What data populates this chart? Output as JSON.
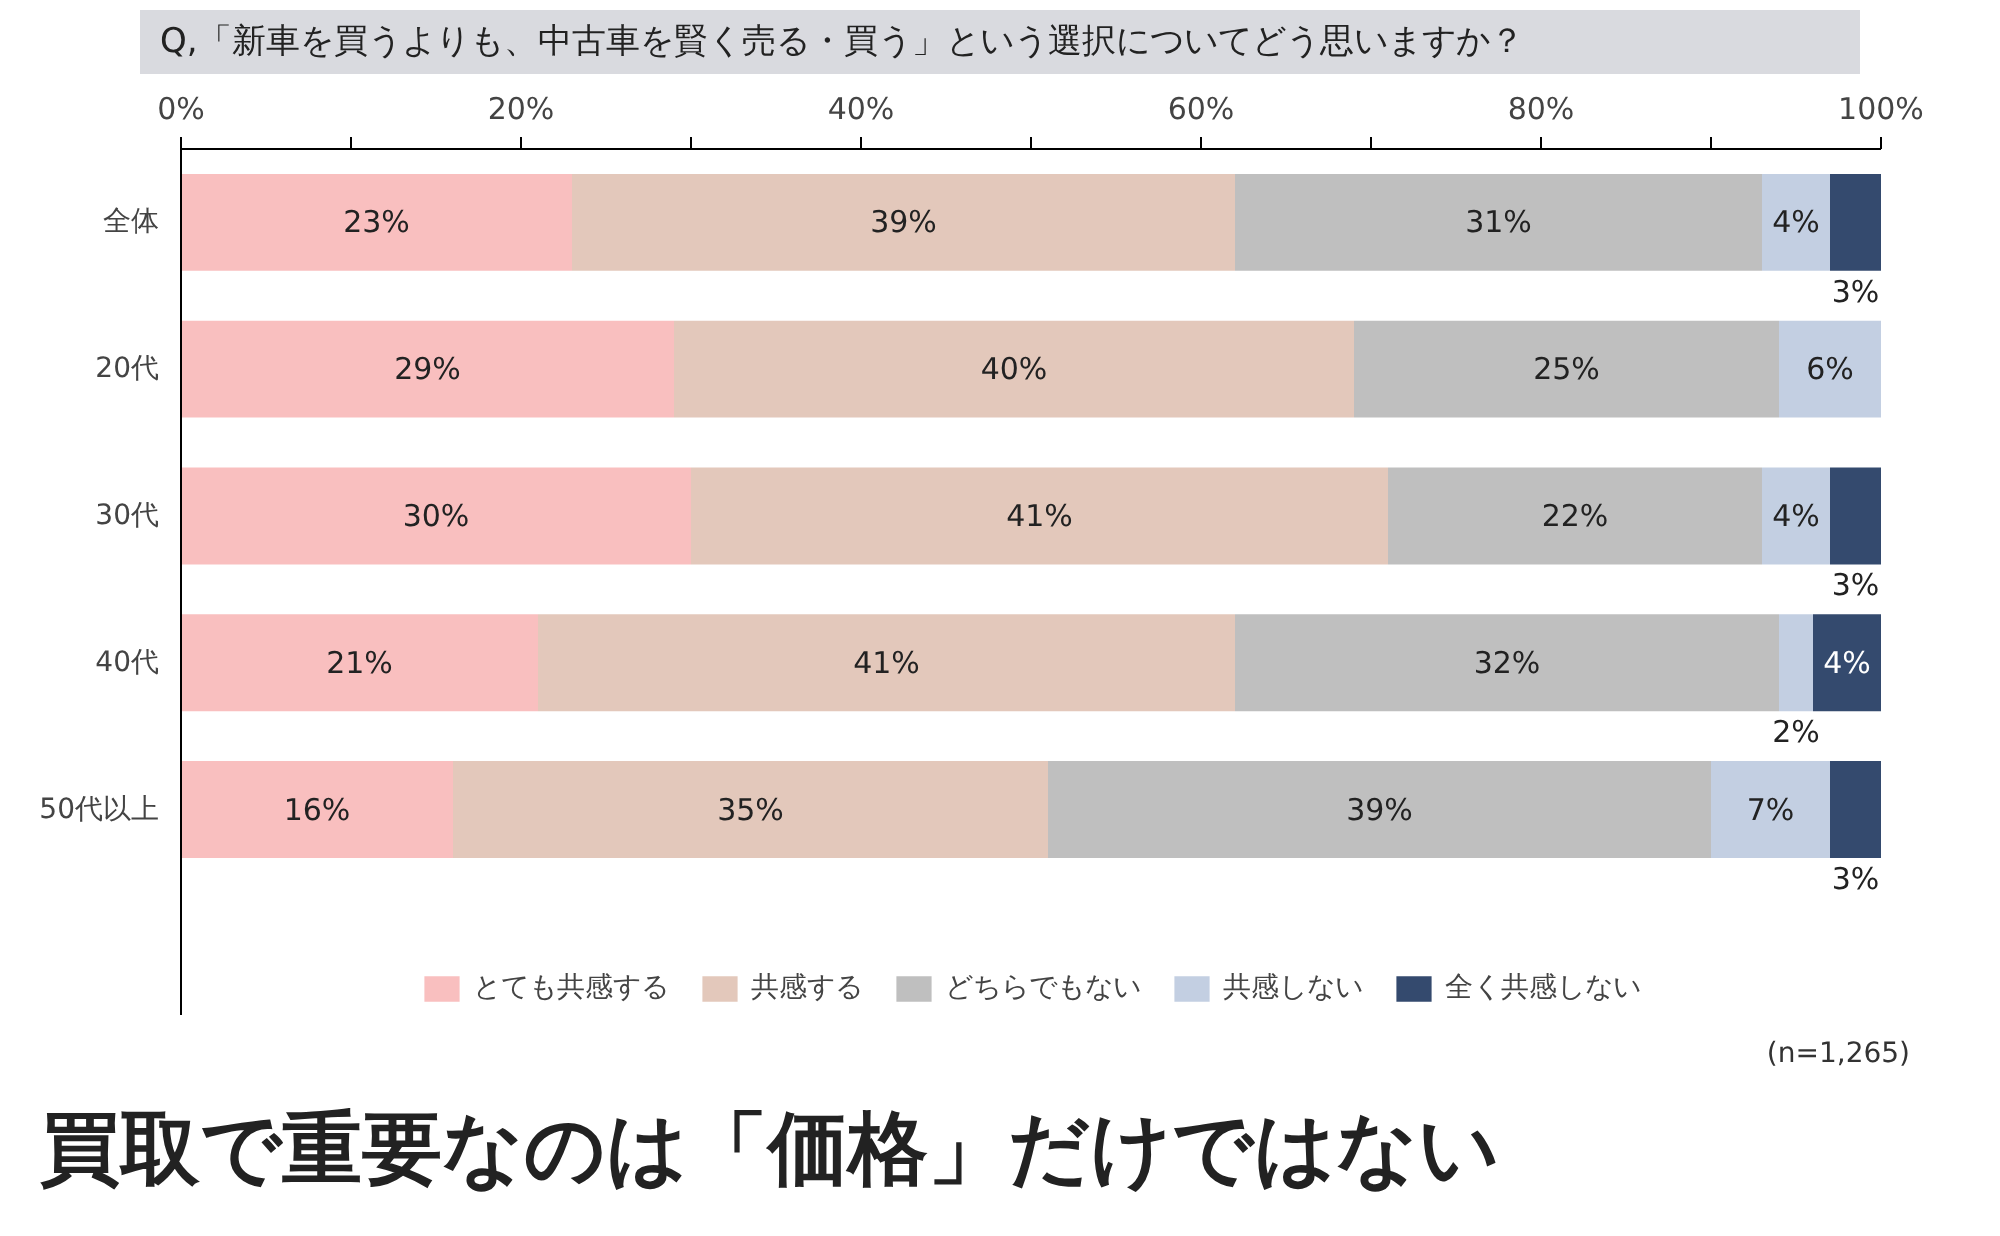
{
  "chart_data": {
    "type": "bar",
    "orientation": "horizontal",
    "stacked": true,
    "title": "Q,「新車を買うよりも、中古車を賢く売る・買う」という選択についてどう思いますか？",
    "categories": [
      "全体",
      "20代",
      "30代",
      "40代",
      "50代以上"
    ],
    "series": [
      {
        "name": "とても共感する",
        "color": "#f9bfbf",
        "values": [
          23,
          29,
          30,
          21,
          16
        ],
        "value_labels": [
          "23%",
          "29%",
          "30%",
          "21%",
          "16%"
        ]
      },
      {
        "name": "共感する",
        "color": "#e3c8bb",
        "values": [
          39,
          40,
          41,
          41,
          35
        ],
        "value_labels": [
          "39%",
          "40%",
          "41%",
          "41%",
          "35%"
        ]
      },
      {
        "name": "どちらでもない",
        "color": "#bfbfbf",
        "values": [
          31,
          25,
          22,
          32,
          39
        ],
        "value_labels": [
          "31%",
          "25%",
          "22%",
          "32%",
          "39%"
        ]
      },
      {
        "name": "共感しない",
        "color": "#c3cfe2",
        "values": [
          4,
          6,
          4,
          2,
          7
        ],
        "value_labels": [
          "4%",
          "6%",
          "4%",
          "2%",
          "7%"
        ]
      },
      {
        "name": "全く共感しない",
        "color": "#344a6e",
        "values": [
          3,
          0,
          3,
          4,
          3
        ],
        "value_labels": [
          "3%",
          null,
          "3%",
          "4%",
          "3%"
        ]
      }
    ],
    "xlim": [
      0,
      100
    ],
    "xticks": [
      {
        "value": 0,
        "label": "0%"
      },
      {
        "value": 10,
        "label": null
      },
      {
        "value": 20,
        "label": "20%"
      },
      {
        "value": 30,
        "label": null
      },
      {
        "value": 40,
        "label": "40%"
      },
      {
        "value": 50,
        "label": null
      },
      {
        "value": 60,
        "label": "60%"
      },
      {
        "value": 70,
        "label": null
      },
      {
        "value": 80,
        "label": "80%"
      },
      {
        "value": 90,
        "label": null
      },
      {
        "value": 100,
        "label": "100%"
      }
    ],
    "grid": false,
    "legend": "bottom",
    "annotations": [
      "(n=1,265)",
      "買取で重要なのは「価格」だけではない"
    ]
  }
}
